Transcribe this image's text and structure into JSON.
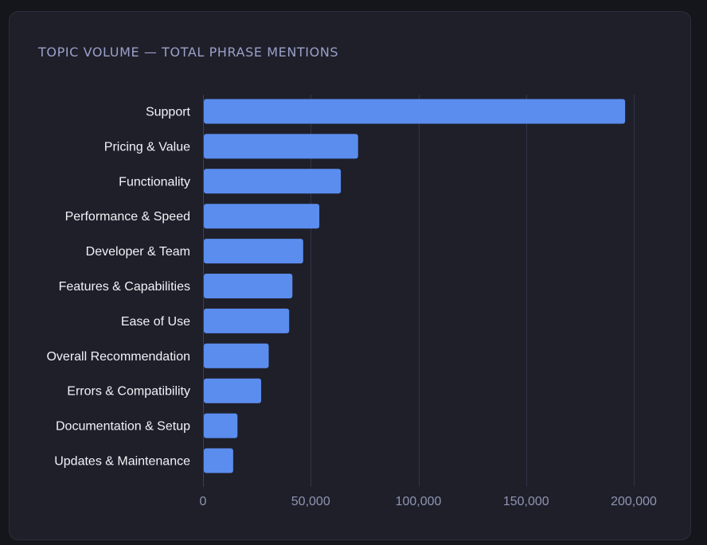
{
  "card": {
    "title": "TOPIC VOLUME — TOTAL PHRASE MENTIONS"
  },
  "colors": {
    "bar": "#5b8def",
    "card_background": "#1e1f29",
    "page_background": "#15161c",
    "title": "#9aa0c8",
    "category_label": "#f2f3f7",
    "tick_label": "#8f95b2",
    "grid": "#323449"
  },
  "chart_data": {
    "type": "bar",
    "orientation": "horizontal",
    "title": "TOPIC VOLUME — TOTAL PHRASE MENTIONS",
    "categories": [
      "Support",
      "Pricing & Value",
      "Functionality",
      "Performance & Speed",
      "Developer & Team",
      "Features & Capabilities",
      "Ease of Use",
      "Overall Recommendation",
      "Errors & Compatibility",
      "Documentation & Setup",
      "Updates & Maintenance"
    ],
    "values": [
      196000,
      72000,
      64000,
      54000,
      46500,
      41500,
      40000,
      30500,
      27000,
      16000,
      14000
    ],
    "xlim": [
      0,
      200000
    ],
    "xticks": [
      0,
      50000,
      100000,
      150000,
      200000
    ],
    "xtick_labels": [
      "0",
      "50,000",
      "100,000",
      "150,000",
      "200,000"
    ],
    "xlabel": "",
    "ylabel": "",
    "grid": true,
    "legend": "none"
  }
}
